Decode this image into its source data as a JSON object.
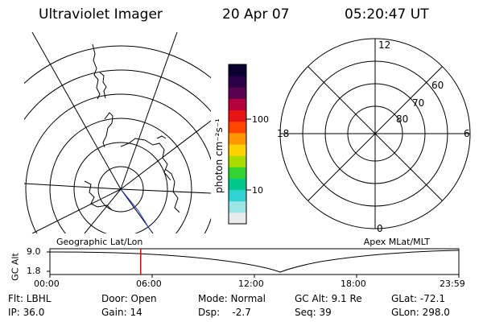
{
  "header": {
    "instrument": "Ultraviolet Imager",
    "date": "20 Apr 07",
    "time": "05:20:47 UT"
  },
  "colorbar": {
    "unit_label": "photon cm⁻²s⁻¹",
    "ticks": [
      "100",
      "10"
    ],
    "colors": [
      "#e8eaec",
      "#9ae6e6",
      "#33d1d1",
      "#00c88c",
      "#32d232",
      "#aadc00",
      "#ffd200",
      "#ff9600",
      "#ff4600",
      "#e61414",
      "#b4003c",
      "#5a0050",
      "#2a0046",
      "#0a0032"
    ]
  },
  "apex_plot": {
    "mlt_labels": {
      "top": "12",
      "left": "18",
      "right": "6",
      "bottom": "0"
    },
    "lat_labels": [
      "60",
      "70",
      "80"
    ]
  },
  "timeline": {
    "left_label": "Geographic Lat/Lon",
    "right_label": "Apex MLat/MLT",
    "yaxis_label": "GC Alt",
    "y_ticks": [
      "9.0",
      "1.8"
    ],
    "x_ticks": [
      "00:00",
      "06:00",
      "12:00",
      "18:00",
      "23:59"
    ],
    "current_time_fraction": 0.222,
    "marker_color": "#dd0000"
  },
  "info": {
    "flt": "Flt: LBHL",
    "door": "Door: Open",
    "mode": "Mode: Normal",
    "gc_alt": "GC Alt: 9.1 Re",
    "glat": "GLat: -72.1",
    "ip": "IP: 36.0",
    "gain": "Gain: 14",
    "dsp": "Dsp:    -2.7",
    "seq": "Seq: 39",
    "glon": "GLon: 298.0"
  }
}
